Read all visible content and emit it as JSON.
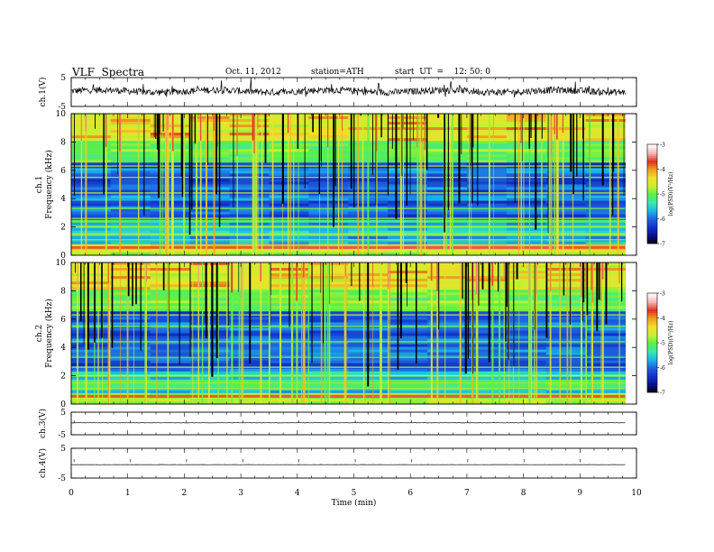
{
  "header": {
    "title": "VLF  Spectra",
    "date": "Oct. 11, 2012",
    "station": "station=ATH",
    "start_ut": "start  UT  =    12: 50: 0"
  },
  "chart_data": [
    {
      "type": "line",
      "ylabel": "ch.1(V)",
      "ylim": [
        -5,
        5
      ],
      "yticks": [
        5,
        -5
      ],
      "xlim": [
        0,
        10
      ],
      "description_values": {
        "baseline": 0.3,
        "noise_amplitude": 1.2
      },
      "trace_end_min": 9.8
    },
    {
      "type": "heatmap",
      "ylabel_line1": "ch.1",
      "ylabel_line2": "Frequency  (kHz)",
      "xlim": [
        0,
        10
      ],
      "ylim": [
        0,
        10
      ],
      "yticks": [
        0,
        2,
        4,
        6,
        8,
        10
      ],
      "data_end_min": 9.8,
      "colorbar": {
        "label": "log(PSD)(V²/Hz)",
        "range": [
          -7,
          -3
        ],
        "ticks": [
          "-3",
          "-4",
          "-5",
          "-6",
          "-7"
        ]
      }
    },
    {
      "type": "heatmap",
      "ylabel_line1": "ch.2",
      "ylabel_line2": "Frequency  (kHz)",
      "xlim": [
        0,
        10
      ],
      "ylim": [
        0,
        10
      ],
      "yticks": [
        0,
        2,
        4,
        6,
        8,
        10
      ],
      "data_end_min": 9.8,
      "colorbar": {
        "label": "log(PSD)(V²/Hz)",
        "range": [
          -7,
          -3
        ],
        "ticks": [
          "-3",
          "-4",
          "-5",
          "-6",
          "-7"
        ]
      }
    },
    {
      "type": "line",
      "ylabel": "ch.3(V)",
      "ylim": [
        -5,
        5
      ],
      "yticks": [
        5,
        -5
      ],
      "xlim": [
        0,
        10
      ]
    },
    {
      "type": "line",
      "ylabel": "ch.4(V)",
      "ylim": [
        -5,
        5
      ],
      "yticks": [
        5,
        -5
      ],
      "xlim": [
        0,
        10
      ]
    }
  ],
  "xaxis": {
    "label": "Time  (min)",
    "ticks": [
      "0",
      "1",
      "2",
      "3",
      "4",
      "5",
      "6",
      "7",
      "8",
      "9",
      "10"
    ]
  },
  "colors": {
    "axis": "#000000",
    "trace": "#000000",
    "colormap": [
      "#000000",
      "#08108a",
      "#1030c8",
      "#1e5ee0",
      "#18b4e8",
      "#38e8b0",
      "#58f048",
      "#c8f030",
      "#f0e028",
      "#f0a020",
      "#e03020",
      "#f6b4b4",
      "#ffffff"
    ]
  }
}
